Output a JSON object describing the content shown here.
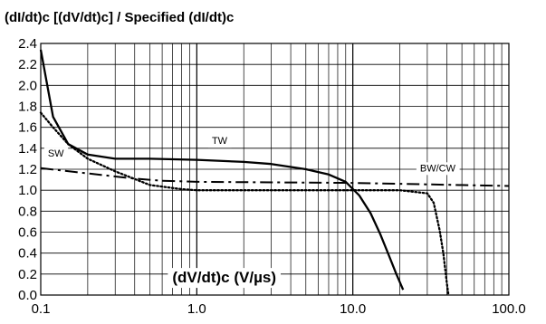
{
  "chart_data": {
    "type": "line",
    "title": "(dI/dt)c [(dV/dt)c] / Specified (dI/dt)c",
    "xlabel": "(dV/dt)c (V/µs)",
    "ylabel": "",
    "x_scale": "log",
    "xlim": [
      0.1,
      100.0
    ],
    "ylim": [
      0.0,
      2.4
    ],
    "grid": true,
    "x_tick_labels": [
      "0.1",
      "1.0",
      "10.0",
      "100.0"
    ],
    "y_tick_labels": [
      "0.0",
      "0.2",
      "0.4",
      "0.6",
      "0.8",
      "1.0",
      "1.2",
      "1.4",
      "1.6",
      "1.8",
      "2.0",
      "2.2",
      "2.4"
    ],
    "series": [
      {
        "name": "TW",
        "style": "solid",
        "x": [
          0.1,
          0.12,
          0.15,
          0.2,
          0.3,
          0.5,
          1.0,
          2.0,
          3.0,
          5.0,
          7.0,
          9.0,
          11.0,
          13.0,
          15.0,
          17.0,
          19.0,
          21.0
        ],
        "y": [
          2.34,
          1.7,
          1.44,
          1.34,
          1.3,
          1.3,
          1.29,
          1.27,
          1.25,
          1.2,
          1.15,
          1.08,
          0.95,
          0.78,
          0.58,
          0.38,
          0.2,
          0.05
        ]
      },
      {
        "name": "SW",
        "style": "dotted",
        "x": [
          0.1,
          0.12,
          0.15,
          0.2,
          0.3,
          0.5,
          0.8,
          1.0,
          5.0,
          10.0,
          20.0,
          30.0,
          33.0,
          36.0,
          38.0,
          40.0,
          41.0
        ],
        "y": [
          1.74,
          1.6,
          1.44,
          1.3,
          1.18,
          1.05,
          1.01,
          1.0,
          1.0,
          1.0,
          1.0,
          0.97,
          0.88,
          0.62,
          0.4,
          0.12,
          0.0
        ]
      },
      {
        "name": "BW/CW",
        "style": "dashdot",
        "x": [
          0.1,
          0.2,
          0.4,
          0.6,
          1.0,
          10.0,
          100.0
        ],
        "y": [
          1.21,
          1.16,
          1.11,
          1.09,
          1.08,
          1.07,
          1.04
        ]
      }
    ]
  }
}
